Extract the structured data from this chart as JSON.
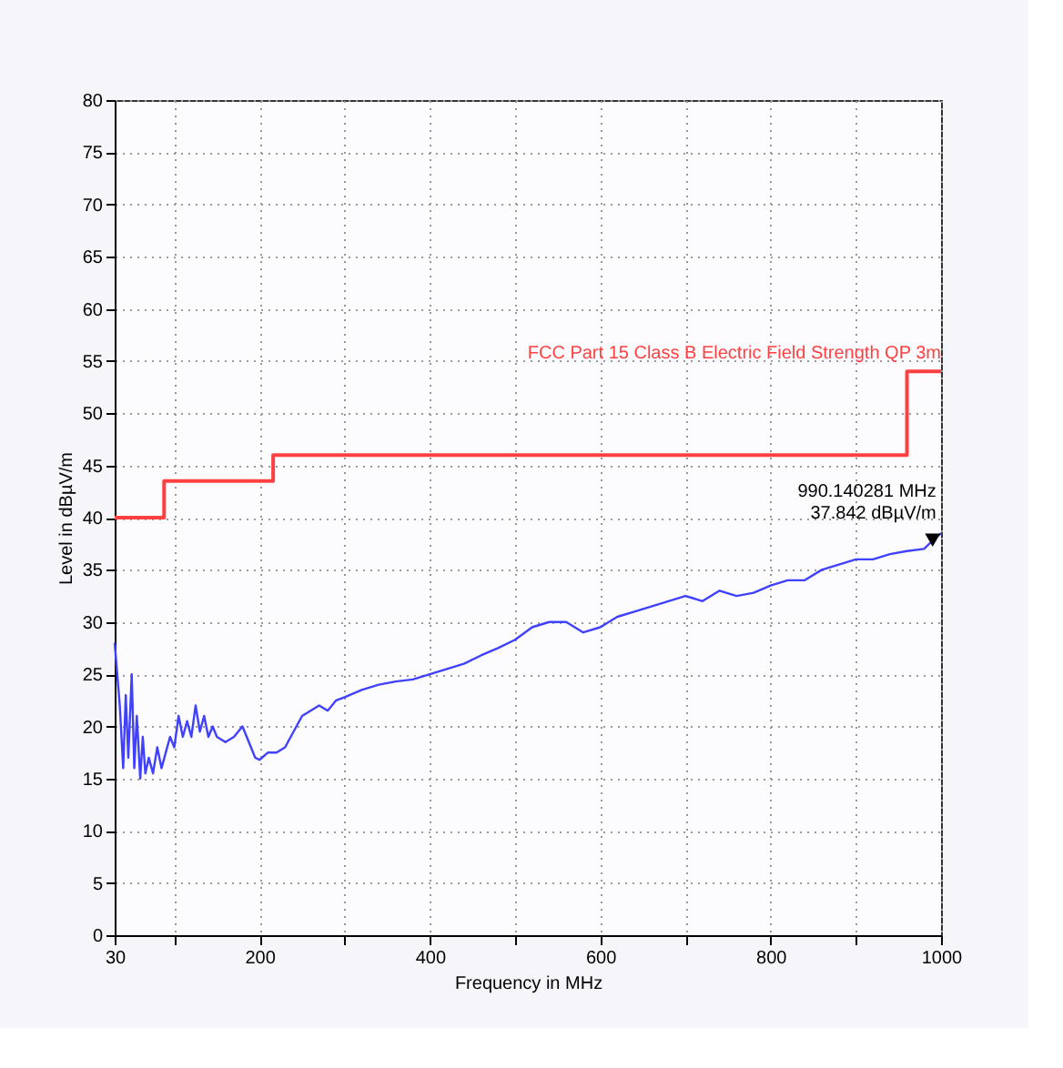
{
  "chart_data": {
    "type": "line",
    "xlabel": "Frequency in MHz",
    "ylabel": "Level in dBµV/m",
    "xlim": [
      30,
      1000
    ],
    "xticks": [
      30,
      {
        "value": 100,
        "label": null
      },
      200,
      {
        "value": 300,
        "label": null
      },
      400,
      {
        "value": 500,
        "label": null
      },
      600,
      {
        "value": 700,
        "label": null
      },
      800,
      {
        "value": 900,
        "label": null
      },
      1000
    ],
    "ylim": [
      0,
      80
    ],
    "yticks": [
      0,
      5,
      10,
      15,
      20,
      25,
      30,
      35,
      40,
      45,
      50,
      55,
      60,
      65,
      70,
      75,
      80
    ],
    "grid": true,
    "line_style": "solid",
    "series": [
      {
        "color": "#4040ff",
        "x": [
          30,
          33,
          36,
          40,
          43,
          46,
          50,
          53,
          56,
          60,
          63,
          66,
          70,
          75,
          80,
          85,
          90,
          95,
          100,
          105,
          110,
          115,
          120,
          125,
          130,
          135,
          140,
          145,
          150,
          160,
          170,
          180,
          190,
          195,
          200,
          210,
          220,
          230,
          240,
          250,
          260,
          270,
          280,
          290,
          300,
          320,
          340,
          360,
          380,
          400,
          420,
          440,
          460,
          480,
          500,
          520,
          540,
          560,
          580,
          600,
          620,
          640,
          660,
          680,
          700,
          720,
          740,
          760,
          780,
          800,
          820,
          840,
          860,
          880,
          900,
          920,
          940,
          960,
          980,
          990,
          1000
        ],
        "values": [
          28,
          25,
          22,
          16,
          23,
          17,
          25,
          16,
          21,
          15,
          19,
          15.5,
          17,
          15.5,
          18,
          16,
          17.5,
          19,
          18,
          21,
          19,
          20.5,
          19,
          22,
          19.5,
          21,
          19,
          20,
          19,
          18.5,
          19,
          20,
          18,
          17,
          16.8,
          17.5,
          17.5,
          18,
          19.5,
          21,
          21.5,
          22,
          21.5,
          22.5,
          22.8,
          23.5,
          24,
          24.3,
          24.5,
          25,
          25.5,
          26,
          26.8,
          27.5,
          28.3,
          29.5,
          30,
          30,
          29,
          29.5,
          30.5,
          31,
          31.5,
          32,
          32.5,
          32,
          33,
          32.5,
          32.8,
          33.5,
          34,
          34,
          35,
          35.5,
          36,
          36,
          36.5,
          36.8,
          37,
          37.8,
          38.5
        ]
      },
      {
        "type": "step",
        "name": "FCC Part 15 Class B Electric Field Strength QP 3m",
        "color": "#ff4040",
        "x": [
          30,
          88,
          216,
          960,
          1000
        ],
        "values": [
          40,
          43.5,
          46,
          54,
          54
        ]
      },
      {
        "type": "scatter",
        "marker": "triangle",
        "color": "#000000",
        "x": [
          990.140281
        ],
        "values": [
          37.842
        ]
      }
    ],
    "annotations": [
      {
        "text": "990.140281 MHz\n37.842 dBµV/m",
        "x": 990.14,
        "y": 37.842
      }
    ]
  }
}
